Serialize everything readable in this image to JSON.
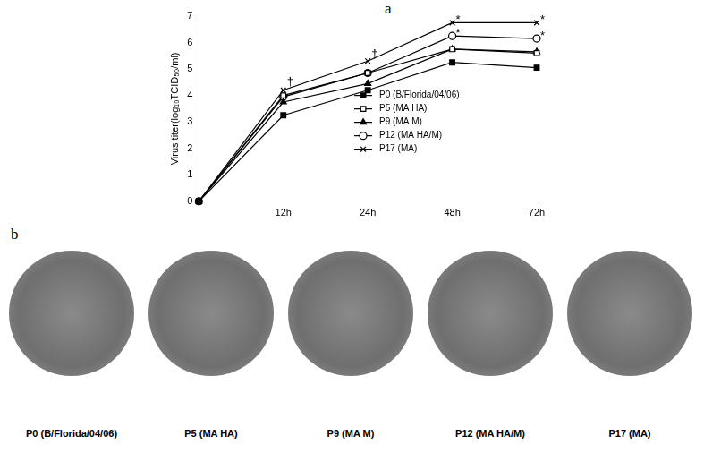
{
  "chart_data": {
    "type": "line",
    "panel_label": "a",
    "y_label": "Virus titer(log₁₀TCID₅₀/ml)",
    "categories": [
      null,
      "12h",
      "24h",
      "48h",
      "72h"
    ],
    "series": [
      {
        "name": "P0 (B/Florida/04/06)",
        "color": "#000000",
        "marker": "square",
        "values": [
          0,
          3.25,
          4.2,
          5.25,
          5.05
        ]
      },
      {
        "name": "P5 (MA HA)",
        "color": "#000000",
        "marker": "square_open",
        "values": [
          0,
          4.0,
          4.85,
          5.75,
          5.6
        ]
      },
      {
        "name": "P9 (MA M)",
        "color": "#000000",
        "marker": "triangle",
        "values": [
          0,
          3.75,
          4.45,
          5.75,
          5.65
        ]
      },
      {
        "name": "P12 (MA HA/M)",
        "color": "#000000",
        "marker": "circle_open",
        "values": [
          0,
          3.95,
          4.85,
          6.25,
          6.15
        ]
      },
      {
        "name": "P17 (MA)",
        "color": "#000000",
        "marker": "cross",
        "values": [
          0,
          4.2,
          5.3,
          6.75,
          6.75
        ]
      }
    ],
    "ylim": [
      0,
      7
    ],
    "yticks": [
      0,
      1,
      2,
      3,
      4,
      5,
      6,
      7
    ],
    "legend": "right",
    "grid": false,
    "annotations": [
      {
        "text": "†",
        "x": "12h",
        "y": 4.5
      },
      {
        "text": "†",
        "x": "24h",
        "y": 5.55
      },
      {
        "text": "*",
        "x": "48h",
        "y": 6.85
      },
      {
        "text": "*",
        "x": "48h",
        "y": 6.35
      },
      {
        "text": "*",
        "x": "72h",
        "y": 6.85
      },
      {
        "text": "*",
        "x": "72h",
        "y": 6.25
      }
    ]
  },
  "panel_b": {
    "panel_label": "b",
    "images": [
      "P0 (B/Florida/04/06)",
      "P5 (MA HA)",
      "P9 (MA M)",
      "P12 (MA HA/M)",
      "P17 (MA)"
    ]
  }
}
